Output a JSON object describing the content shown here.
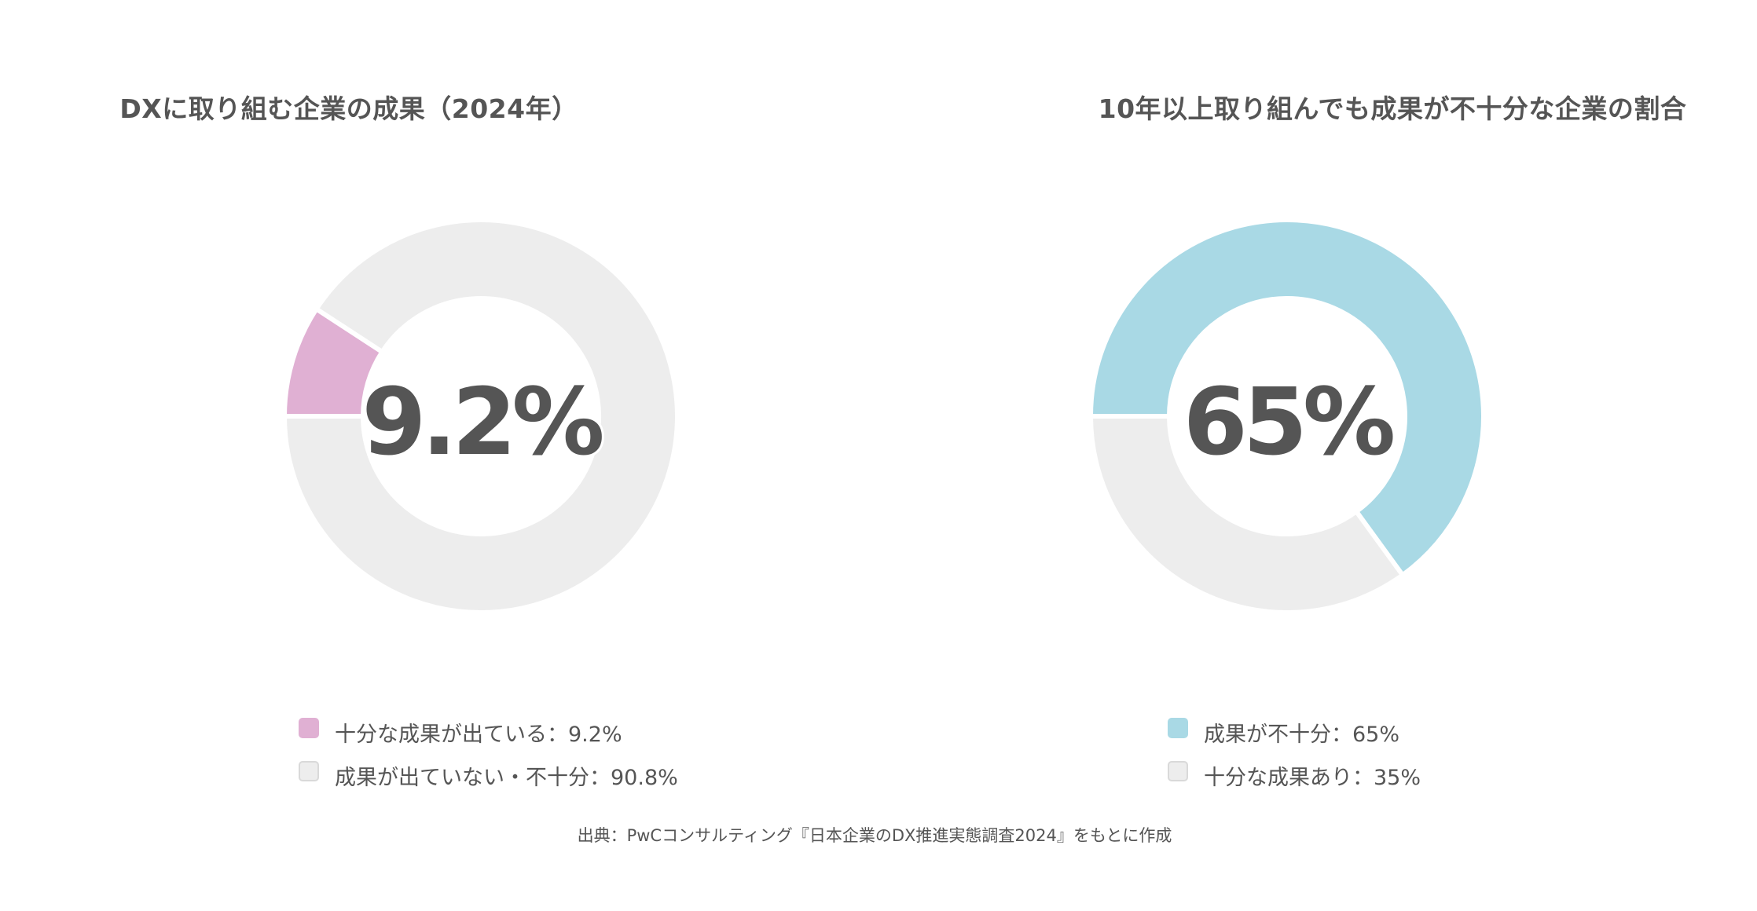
{
  "source": "出典：PwCコンサルティング『日本企業のDX推進実態調査2024』をもとに作成",
  "colors": {
    "pink": "#e0b0d3",
    "blue": "#a9d9e5",
    "gray": "#ededed",
    "text": "#555555"
  },
  "chart_data": [
    {
      "type": "pie",
      "title": "DXに取り組む企業の成果（2024年）",
      "center_label": "9.2%",
      "slices": [
        {
          "label": "十分な成果が出ている：9.2%",
          "value": 9.2,
          "color": "#e0b0d3"
        },
        {
          "label": "成果が出ていない・不十分：90.8%",
          "value": 90.8,
          "color": "#ededed"
        }
      ],
      "legend_position": "bottom"
    },
    {
      "type": "pie",
      "title": "10年以上取り組んでも成果が不十分な企業の割合",
      "center_label": "65%",
      "slices": [
        {
          "label": "成果が不十分：65%",
          "value": 65,
          "color": "#a9d9e5"
        },
        {
          "label": "十分な成果あり：35%",
          "value": 35,
          "color": "#ededed"
        }
      ],
      "legend_position": "bottom"
    }
  ]
}
